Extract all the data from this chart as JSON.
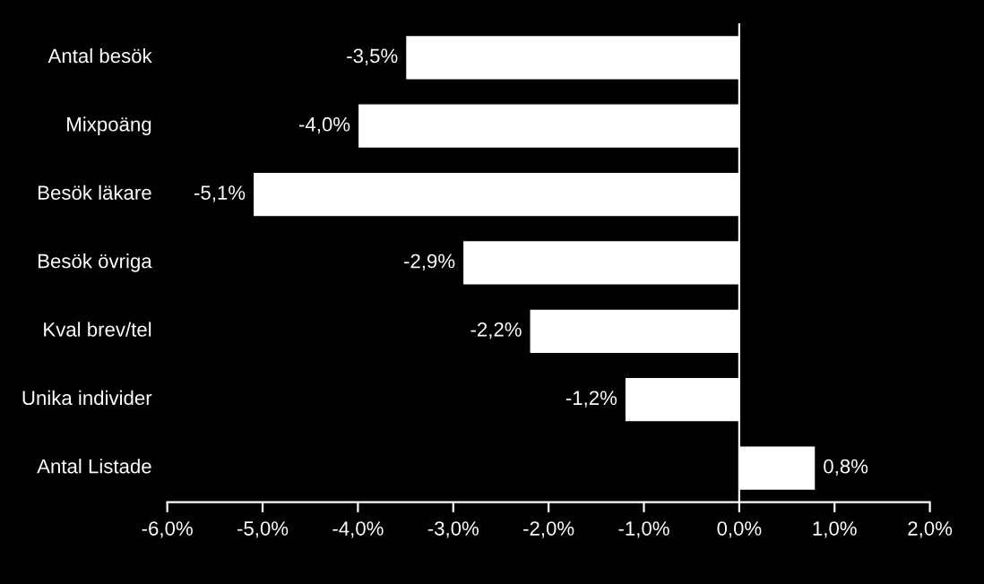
{
  "chart_data": {
    "type": "bar",
    "orientation": "horizontal",
    "categories": [
      "Antal besök",
      "Mixpoäng",
      "Besök läkare",
      "Besök övriga",
      "Kval brev/tel",
      "Unika individer",
      "Antal Listade"
    ],
    "values": [
      -3.5,
      -4.0,
      -5.1,
      -2.9,
      -2.2,
      -1.2,
      0.8
    ],
    "value_labels": [
      "-3,5%",
      "-4,0%",
      "-5,1%",
      "-2,9%",
      "-2,2%",
      "-1,2%",
      "0,8%"
    ],
    "color": "#ffffff",
    "xlim": [
      -6,
      2
    ],
    "xticks": [
      {
        "value": -6,
        "label": "-6,0%"
      },
      {
        "value": -5,
        "label": "-5,0%"
      },
      {
        "value": -4,
        "label": "-4,0%"
      },
      {
        "value": -3,
        "label": "-3,0%"
      },
      {
        "value": -2,
        "label": "-2,0%"
      },
      {
        "value": -1,
        "label": "-1,0%"
      },
      {
        "value": 0,
        "label": "0,0%"
      },
      {
        "value": 1,
        "label": "1,0%"
      },
      {
        "value": 2,
        "label": "2,0%"
      }
    ],
    "ref_lines": [
      {
        "axis": "x",
        "value": 0,
        "color": "#ffffff"
      }
    ],
    "grid": false,
    "legend": false
  }
}
